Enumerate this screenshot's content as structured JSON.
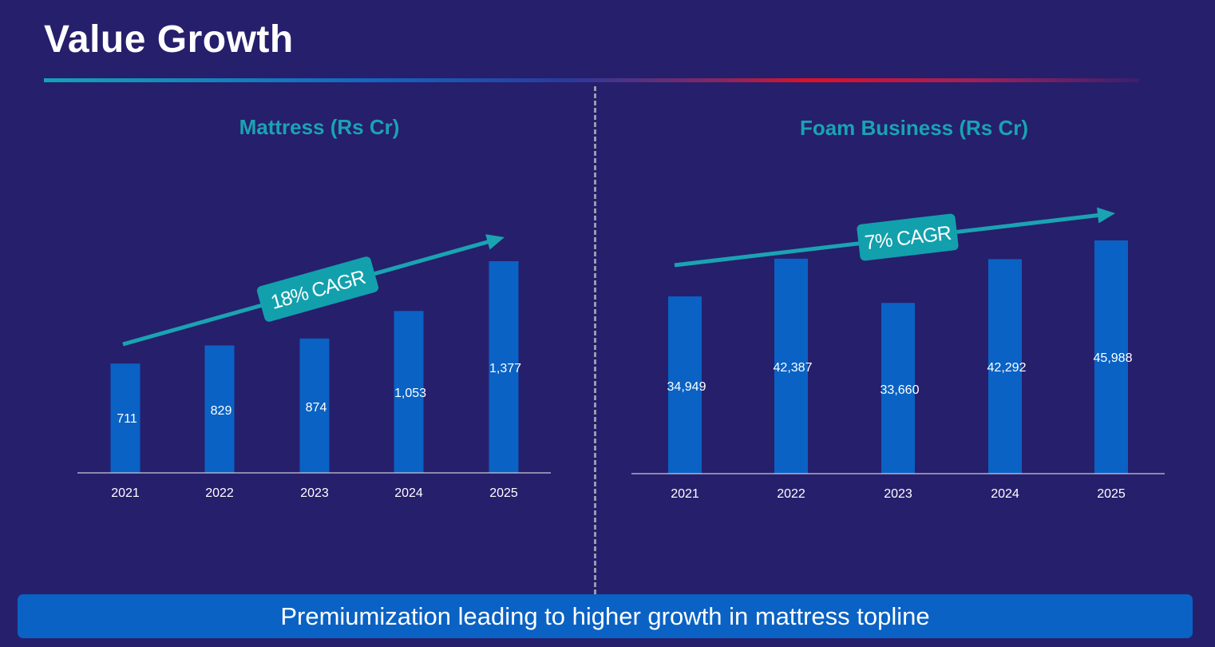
{
  "title": "Value Growth",
  "footer": "Premiumization leading to higher growth in mattress topline",
  "colors": {
    "background": "#261f6c",
    "bar": "#0a62c4",
    "accent": "#1aa3b3",
    "divider": "#9a9ab0"
  },
  "chart_data": [
    {
      "type": "bar",
      "title": "Mattress (Rs Cr)",
      "categories": [
        "2021",
        "2022",
        "2023",
        "2024",
        "2025"
      ],
      "values": [
        711,
        829,
        874,
        1053,
        1377
      ],
      "value_labels": [
        "711",
        "829",
        "874",
        "1,053",
        "1,377"
      ],
      "ylim": [
        0,
        1377
      ],
      "annotation": "18% CAGR",
      "grid": false
    },
    {
      "type": "bar",
      "title": "Foam Business (Rs Cr)",
      "categories": [
        "2021",
        "2022",
        "2023",
        "2024",
        "2025"
      ],
      "values": [
        34949,
        42387,
        33660,
        42292,
        45988
      ],
      "value_labels": [
        "34,949",
        "42,387",
        "33,660",
        "42,292",
        "45,988"
      ],
      "ylim": [
        0,
        45988
      ],
      "annotation": "7% CAGR",
      "grid": false
    }
  ]
}
